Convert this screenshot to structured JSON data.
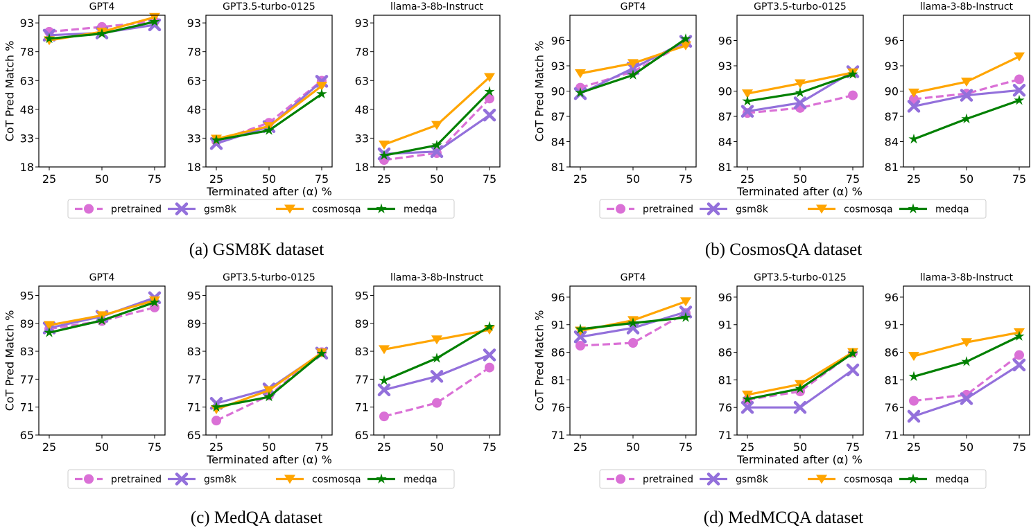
{
  "chart_data": [
    {
      "caption": "(a) GSM8K dataset",
      "type": "line",
      "ylabel": "CoT Pred Match %",
      "xlabel": "Terminated after (α) %",
      "x": [
        25,
        50,
        75
      ],
      "ylim": [
        18,
        97
      ],
      "yticks": [
        18,
        33,
        48,
        63,
        78,
        93
      ],
      "subplots": [
        {
          "title": "GPT4",
          "series": [
            {
              "name": "pretrained",
              "values": [
                88.4,
                90.9,
                93.8
              ]
            },
            {
              "name": "gsm8k",
              "values": [
                86.6,
                87.8,
                92.0
              ]
            },
            {
              "name": "cosmosqa",
              "values": [
                83.9,
                88.4,
                96.0
              ]
            },
            {
              "name": "medqa",
              "values": [
                84.8,
                87.4,
                93.6
              ]
            }
          ]
        },
        {
          "title": "GPT3.5-turbo-0125",
          "series": [
            {
              "name": "pretrained",
              "values": [
                31.4,
                41.0,
                62.9
              ]
            },
            {
              "name": "gsm8k",
              "values": [
                30.2,
                39.0,
                62.6
              ]
            },
            {
              "name": "cosmosqa",
              "values": [
                32.6,
                39.2,
                60.2
              ]
            },
            {
              "name": "medqa",
              "values": [
                32.0,
                37.0,
                56.0
              ]
            }
          ]
        },
        {
          "title": "llama-3-8b-Instruct",
          "series": [
            {
              "name": "pretrained",
              "values": [
                21.6,
                25.2,
                53.6
              ]
            },
            {
              "name": "gsm8k",
              "values": [
                24.8,
                26.0,
                45.0
              ]
            },
            {
              "name": "cosmosqa",
              "values": [
                29.6,
                39.8,
                64.7
              ]
            },
            {
              "name": "medqa",
              "values": [
                24.0,
                29.3,
                57.2
              ]
            }
          ]
        }
      ]
    },
    {
      "caption": "(b) CosmosQA dataset",
      "type": "line",
      "ylabel": "CoT Pred Match %",
      "xlabel": "Terminated after (α) %",
      "x": [
        25,
        50,
        75
      ],
      "ylim": [
        81,
        99
      ],
      "yticks": [
        81,
        84,
        87,
        90,
        93,
        96
      ],
      "subplots": [
        {
          "title": "GPT4",
          "series": [
            {
              "name": "pretrained",
              "values": [
                90.4,
                92.3,
                95.7
              ]
            },
            {
              "name": "gsm8k",
              "values": [
                89.7,
                92.7,
                95.9
              ]
            },
            {
              "name": "cosmosqa",
              "values": [
                92.1,
                93.3,
                95.4
              ]
            },
            {
              "name": "medqa",
              "values": [
                89.8,
                91.9,
                96.2
              ]
            }
          ]
        },
        {
          "title": "GPT3.5-turbo-0125",
          "series": [
            {
              "name": "pretrained",
              "values": [
                87.4,
                88.0,
                89.5
              ]
            },
            {
              "name": "gsm8k",
              "values": [
                87.6,
                88.6,
                92.3
              ]
            },
            {
              "name": "cosmosqa",
              "values": [
                89.7,
                90.9,
                92.2
              ]
            },
            {
              "name": "medqa",
              "values": [
                88.8,
                89.8,
                92.0
              ]
            }
          ]
        },
        {
          "title": "llama-3-8b-Instruct",
          "series": [
            {
              "name": "pretrained",
              "values": [
                89.05,
                89.7,
                91.4
              ]
            },
            {
              "name": "gsm8k",
              "values": [
                88.2,
                89.5,
                90.1
              ]
            },
            {
              "name": "cosmosqa",
              "values": [
                89.8,
                91.1,
                94.1
              ]
            },
            {
              "name": "medqa",
              "values": [
                84.3,
                86.7,
                88.9
              ]
            }
          ]
        }
      ]
    },
    {
      "caption": "(c) MedQA dataset",
      "type": "line",
      "ylabel": "CoT Pred Match %",
      "xlabel": "Terminated after (α) %",
      "x": [
        25,
        50,
        75
      ],
      "ylim": [
        65,
        97
      ],
      "yticks": [
        65,
        71,
        77,
        83,
        89,
        95
      ],
      "subplots": [
        {
          "title": "GPT4",
          "series": [
            {
              "name": "pretrained",
              "values": [
                87.8,
                89.5,
                92.4
              ]
            },
            {
              "name": "gsm8k",
              "values": [
                88.0,
                90.5,
                94.5
              ]
            },
            {
              "name": "cosmosqa",
              "values": [
                88.6,
                90.7,
                93.9
              ]
            },
            {
              "name": "medqa",
              "values": [
                87.0,
                89.6,
                93.5
              ]
            }
          ]
        },
        {
          "title": "GPT3.5-turbo-0125",
          "series": [
            {
              "name": "pretrained",
              "values": [
                68.1,
                73.5,
                82.8
              ]
            },
            {
              "name": "gsm8k",
              "values": [
                71.8,
                74.9,
                82.6
              ]
            },
            {
              "name": "cosmosqa",
              "values": [
                70.5,
                74.6,
                82.7
              ]
            },
            {
              "name": "medqa",
              "values": [
                71.0,
                73.2,
                82.5
              ]
            }
          ]
        },
        {
          "title": "llama-3-8b-Instruct",
          "series": [
            {
              "name": "pretrained",
              "values": [
                69.0,
                71.9,
                79.5
              ]
            },
            {
              "name": "gsm8k",
              "values": [
                74.7,
                77.6,
                82.2
              ]
            },
            {
              "name": "cosmosqa",
              "values": [
                83.4,
                85.5,
                87.6
              ]
            },
            {
              "name": "medqa",
              "values": [
                76.7,
                81.5,
                88.3
              ]
            }
          ]
        }
      ]
    },
    {
      "caption": "(d) MedMCQA dataset",
      "type": "line",
      "ylabel": "CoT Pred Match %",
      "xlabel": "Terminated after (α) %",
      "x": [
        25,
        50,
        75
      ],
      "ylim": [
        71,
        98
      ],
      "yticks": [
        71,
        76,
        81,
        86,
        91,
        96
      ],
      "subplots": [
        {
          "title": "GPT4",
          "series": [
            {
              "name": "pretrained",
              "values": [
                87.2,
                87.7,
                93.1
              ]
            },
            {
              "name": "gsm8k",
              "values": [
                88.8,
                90.4,
                93.3
              ]
            },
            {
              "name": "cosmosqa",
              "values": [
                89.9,
                91.8,
                95.2
              ]
            },
            {
              "name": "medqa",
              "values": [
                90.2,
                91.3,
                92.3
              ]
            }
          ]
        },
        {
          "title": "GPT3.5-turbo-0125",
          "series": [
            {
              "name": "pretrained",
              "values": [
                77.4,
                78.9,
                85.9
              ]
            },
            {
              "name": "gsm8k",
              "values": [
                76.0,
                76.0,
                82.8
              ]
            },
            {
              "name": "cosmosqa",
              "values": [
                78.3,
                80.2,
                86.0
              ]
            },
            {
              "name": "medqa",
              "values": [
                77.5,
                79.4,
                85.8
              ]
            }
          ]
        },
        {
          "title": "llama-3-8b-Instruct",
          "series": [
            {
              "name": "pretrained",
              "values": [
                77.2,
                78.3,
                85.5
              ]
            },
            {
              "name": "gsm8k",
              "values": [
                74.4,
                77.6,
                83.7
              ]
            },
            {
              "name": "cosmosqa",
              "values": [
                85.3,
                87.8,
                89.6
              ]
            },
            {
              "name": "medqa",
              "values": [
                81.6,
                84.3,
                88.9
              ]
            }
          ]
        }
      ]
    }
  ],
  "legend": {
    "placement": "bottom",
    "entries": [
      {
        "name": "pretrained",
        "color": "#DA70D6",
        "marker": "circle",
        "dash": true
      },
      {
        "name": "gsm8k",
        "color": "#9370DB",
        "marker": "x",
        "dash": false
      },
      {
        "name": "cosmosqa",
        "color": "#FFA500",
        "marker": "triangle-down",
        "dash": false
      },
      {
        "name": "medqa",
        "color": "#008000",
        "marker": "star",
        "dash": false
      }
    ]
  }
}
